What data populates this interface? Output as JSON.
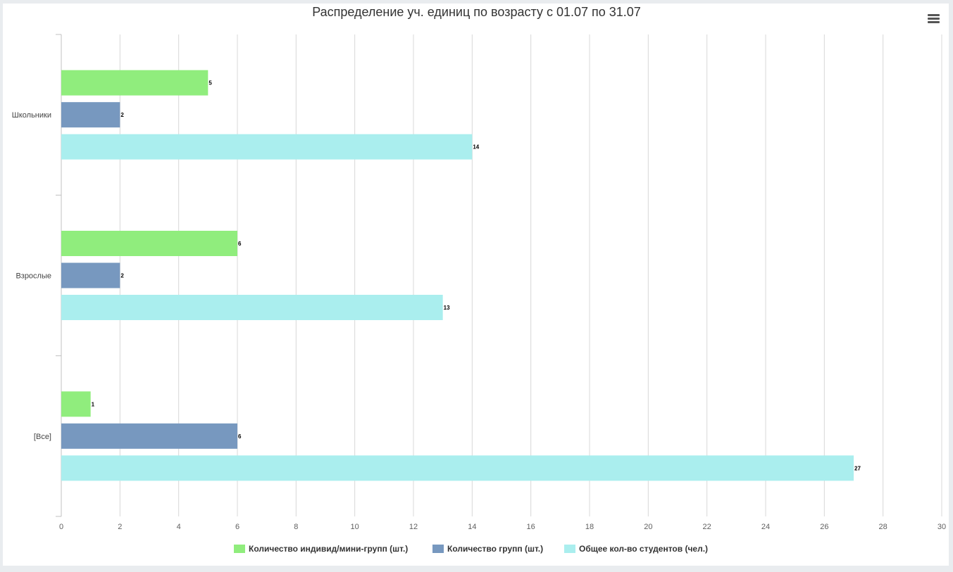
{
  "chart_data": {
    "type": "bar",
    "orientation": "horizontal",
    "title": "Распределение уч. единиц по возрасту с 01.07 по 31.07",
    "categories": [
      "Школьники",
      "Взрослые",
      "[Все]"
    ],
    "series": [
      {
        "name": "Количество индивид/мини-групп (шт.)",
        "color": "#90ed7d",
        "values": [
          5,
          6,
          1
        ]
      },
      {
        "name": "Количество групп (шт.)",
        "color": "#7798bf",
        "values": [
          2,
          2,
          6
        ]
      },
      {
        "name": "Общее кол-во студентов (чел.)",
        "color": "#aaeeee",
        "values": [
          14,
          13,
          27
        ]
      }
    ],
    "xlim": [
      0,
      30
    ],
    "xticks": [
      0,
      2,
      4,
      6,
      8,
      10,
      12,
      14,
      16,
      18,
      20,
      22,
      24,
      26,
      28,
      30
    ],
    "xlabel": "",
    "ylabel": "",
    "grid": true,
    "data_labels": true,
    "legend_position": "bottom-center"
  },
  "menu": {
    "icon": "hamburger-menu-icon"
  }
}
